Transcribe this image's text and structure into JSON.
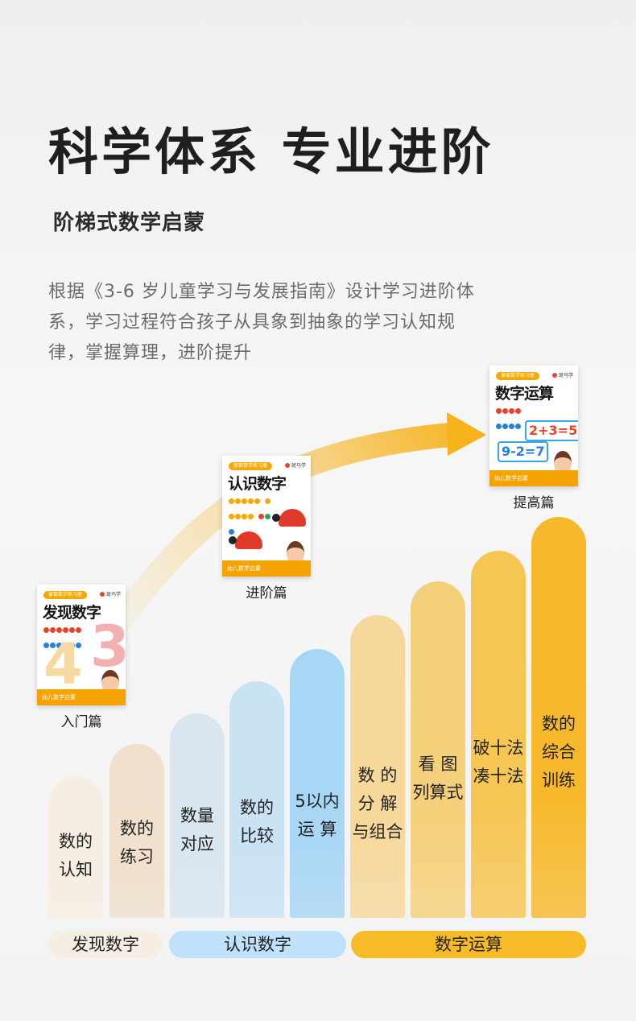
{
  "title": "科学体系 专业进阶",
  "subtitle": "阶梯式数学启蒙",
  "description": [
    "根据《3-6 岁儿童学习与发展指南》设计学习进阶体",
    "系，学习过程符合孩子从具象到抽象的学习认知规",
    "律，掌握算理，进阶提升"
  ],
  "books": [
    {
      "series_tag": "套套数学练习册",
      "title": "发现数字",
      "brand": "斑马学",
      "footer": "幼儿数学启蒙",
      "label": "入门篇"
    },
    {
      "series_tag": "套套数学练习册",
      "title": "认识数字",
      "brand": "斑马学",
      "footer": "幼儿数学启蒙",
      "label": "进阶篇"
    },
    {
      "series_tag": "套套数学练习册",
      "title": "数字运算",
      "brand": "斑马学",
      "footer": "幼儿数学启蒙",
      "label": "提高篇",
      "equations": [
        "2+3=5",
        "9-2=7"
      ]
    }
  ],
  "steps": [
    {
      "label": "数的\n认知",
      "color": "#f6eee3"
    },
    {
      "label": "数的\n练习",
      "color": "#f0e0cc"
    },
    {
      "label": "数量\n对应",
      "color": "#d9e6ef"
    },
    {
      "label": "数的\n比较",
      "color": "#c9e2f4"
    },
    {
      "label": "5以内\n运  算",
      "color": "#a8d6f5"
    },
    {
      "label": "数  的\n分  解\n与组合",
      "color": "#f6d89a"
    },
    {
      "label": "看  图\n列算式",
      "color": "#f5d07a"
    },
    {
      "label": "破十法\n凑十法",
      "color": "#f6c653"
    },
    {
      "label": "数的\n综合\n训练",
      "color": "#f7b92b"
    }
  ],
  "groups": [
    {
      "label": "发现数字",
      "color": "#f6eee3"
    },
    {
      "label": "认识数字",
      "color": "#bfe2fa"
    },
    {
      "label": "数字运算",
      "color": "#f7bb28"
    }
  ],
  "colors": {
    "arrow": "#f6b21a",
    "accent": "#f5a300"
  }
}
